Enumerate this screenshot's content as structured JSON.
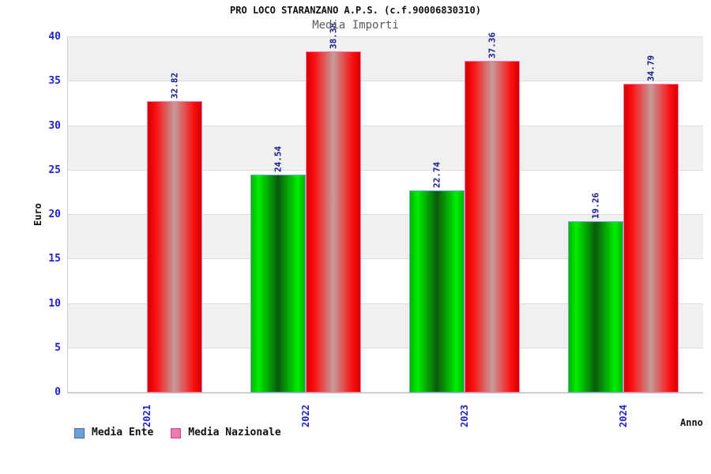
{
  "header": {
    "title": "PRO LOCO STARANZANO A.P.S. (c.f.90006830310)",
    "subtitle": "Media Importi"
  },
  "chart_data": {
    "type": "bar",
    "title": "Media Importi",
    "categories": [
      "2021",
      "2022",
      "2023",
      "2024"
    ],
    "series": [
      {
        "name": "Media Ente",
        "values": [
          null,
          24.54,
          22.74,
          19.26
        ],
        "bar_colors": {
          "edge": "#00b400",
          "bright": "#00ee00",
          "mid": "#0b5a0b",
          "border": "#74aadc"
        },
        "legend_colors": {
          "fill": "#6f9fd8",
          "border": "#3a6ea5"
        }
      },
      {
        "name": "Media Nazionale",
        "values": [
          32.82,
          38.38,
          37.36,
          34.79
        ],
        "bar_colors": {
          "edge": "#d40000",
          "bright": "#fb0d0d",
          "mid": "#c59b9b",
          "border": "#ff7bb0"
        },
        "legend_colors": {
          "fill": "#ef7bae",
          "border": "#c05080"
        }
      }
    ],
    "ylabel": "Euro",
    "xlabel": "Anno",
    "ylim": [
      0,
      40
    ],
    "ytick_step": 5,
    "yticks": [
      0,
      5,
      10,
      15,
      20,
      25,
      30,
      35,
      40
    ],
    "band_colors": [
      "#ffffff",
      "#f0f0f0"
    ],
    "tick_label_color": "#2222cc",
    "value_label_color": "#18188e",
    "grid": "horizontal-bands",
    "legend_position": "bottom"
  }
}
